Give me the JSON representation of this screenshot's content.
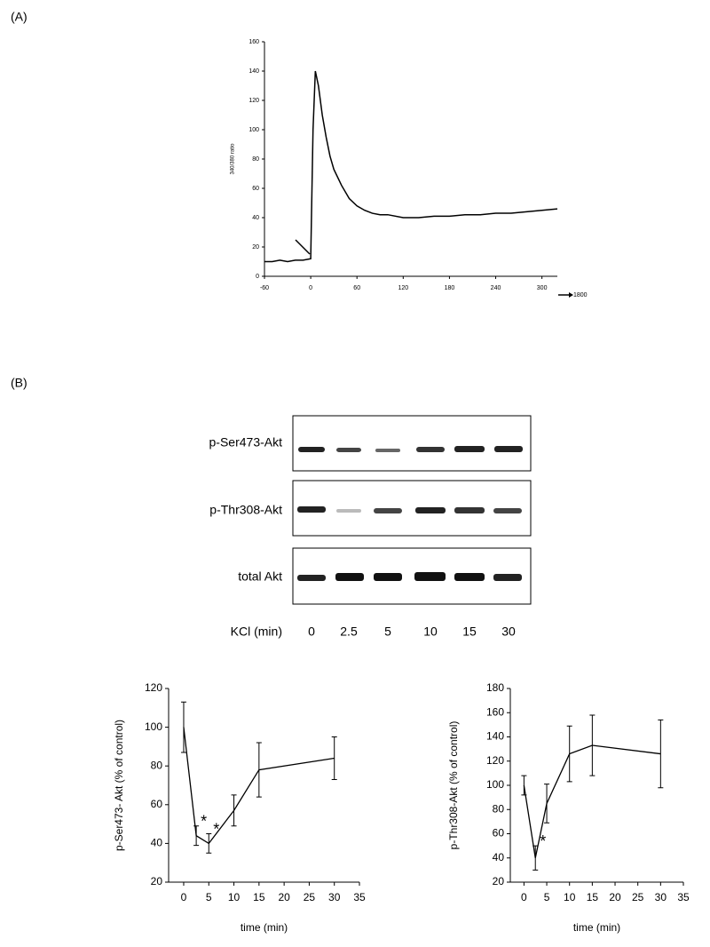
{
  "panel_labels": [
    "(A)",
    "(B)"
  ],
  "blot": {
    "rows": [
      "p-Ser473-Akt",
      "p-Thr308-Akt",
      "total Akt"
    ],
    "lane_title": "KCl (min)",
    "lanes": [
      "0",
      "2.5",
      "5",
      "10",
      "15",
      "30"
    ]
  },
  "chart_data": [
    {
      "type": "line",
      "y_label": "340/380 ratio",
      "color": "#000000",
      "x": [
        -60,
        -50,
        -40,
        -30,
        -20,
        -10,
        0,
        3,
        6,
        10,
        15,
        20,
        25,
        30,
        40,
        50,
        60,
        70,
        80,
        90,
        100,
        120,
        140,
        160,
        180,
        200,
        220,
        240,
        260,
        280,
        300,
        320
      ],
      "values": [
        10,
        10,
        11,
        10,
        11,
        11,
        12,
        100,
        140,
        130,
        110,
        95,
        82,
        73,
        62,
        53,
        48,
        45,
        43,
        42,
        42,
        40,
        40,
        41,
        41,
        42,
        42,
        43,
        43,
        44,
        45,
        46
      ],
      "xlim": [
        -60,
        320
      ],
      "ylim": [
        0,
        160
      ],
      "xticks": [
        -60,
        0,
        60,
        120,
        180,
        240,
        300
      ],
      "yticks": [
        0,
        20,
        40,
        60,
        80,
        100,
        120,
        140,
        160
      ],
      "x_break_label": "1800"
    },
    {
      "type": "line",
      "x_label": "time (min)",
      "y_label": "p-Ser473- Akt (% of control)",
      "color": "#000000",
      "x": [
        0,
        2.5,
        5,
        10,
        15,
        30
      ],
      "values": [
        100,
        44,
        40,
        57,
        78,
        84
      ],
      "errors": [
        13,
        5,
        5,
        8,
        14,
        11
      ],
      "annotations": [
        {
          "text": "*",
          "x": 2.5
        },
        {
          "text": "*",
          "x": 5
        }
      ],
      "xlim": [
        -3,
        35
      ],
      "ylim": [
        20,
        120
      ],
      "xticks": [
        0,
        5,
        10,
        15,
        20,
        25,
        30,
        35
      ],
      "yticks": [
        20,
        40,
        60,
        80,
        100,
        120
      ]
    },
    {
      "type": "line",
      "x_label": "time (min)",
      "y_label": "p-Thr308-Akt (% of control)",
      "color": "#000000",
      "x": [
        0,
        2.5,
        5,
        10,
        15,
        30
      ],
      "values": [
        100,
        40,
        85,
        126,
        133,
        126
      ],
      "errors": [
        8,
        10,
        16,
        23,
        25,
        28
      ],
      "annotations": [
        {
          "text": "*",
          "x": 2.5
        }
      ],
      "xlim": [
        -3,
        35
      ],
      "ylim": [
        20,
        180
      ],
      "xticks": [
        0,
        5,
        10,
        15,
        20,
        25,
        30,
        35
      ],
      "yticks": [
        20,
        40,
        60,
        80,
        100,
        120,
        140,
        160,
        180
      ]
    }
  ]
}
